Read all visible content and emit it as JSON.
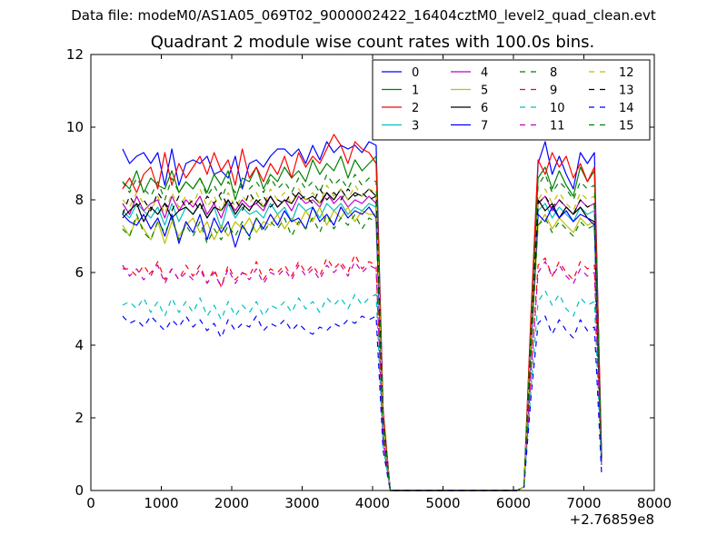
{
  "header": {
    "data_file": "Data file: modeM0/AS1A05_069T02_9000002422_16404cztM0_level2_quad_clean.evt"
  },
  "chart_data": {
    "type": "line",
    "title": "Quadrant 2 module wise count rates with 100.0s bins.",
    "xlabel": "",
    "ylabel": "",
    "xlim": [
      0,
      8000
    ],
    "ylim": [
      0,
      12
    ],
    "x_offset_label": "+2.76859e8",
    "x_ticks": [
      0,
      1000,
      2000,
      3000,
      4000,
      5000,
      6000,
      7000,
      8000
    ],
    "y_ticks": [
      0,
      2,
      4,
      6,
      8,
      10,
      12
    ],
    "grid": false,
    "legend_position": "top-right",
    "legend_columns": 4,
    "x": [
      450,
      550,
      650,
      750,
      850,
      950,
      1050,
      1150,
      1250,
      1350,
      1450,
      1550,
      1650,
      1750,
      1850,
      1950,
      2050,
      2150,
      2250,
      2350,
      2450,
      2550,
      2650,
      2750,
      2850,
      2950,
      3050,
      3150,
      3250,
      3350,
      3450,
      3550,
      3650,
      3750,
      3850,
      3950,
      4050,
      4150,
      4250,
      4350,
      4450,
      4550,
      4650,
      4750,
      4850,
      4950,
      5050,
      5150,
      5250,
      5350,
      5450,
      5550,
      5650,
      5750,
      5850,
      5950,
      6050,
      6150,
      6250,
      6350,
      6450,
      6550,
      6650,
      6750,
      6850,
      6950,
      7050,
      7150,
      7250
    ],
    "series": [
      {
        "name": "0",
        "color": "#0000ff",
        "dash": "solid",
        "values": [
          9.4,
          9.0,
          9.2,
          9.3,
          9.0,
          9.3,
          8.4,
          9.4,
          8.4,
          9.0,
          9.1,
          9.0,
          9.2,
          8.7,
          8.8,
          8.6,
          9.2,
          8.3,
          9.0,
          9.1,
          8.9,
          9.2,
          9.4,
          9.4,
          9.2,
          9.4,
          9.0,
          9.5,
          9.1,
          9.6,
          9.3,
          9.5,
          9.4,
          9.5,
          9.3,
          9.6,
          9.5,
          2.2,
          0,
          0,
          0,
          0,
          0,
          0,
          0,
          0,
          0,
          0,
          0,
          0,
          0,
          0,
          0,
          0,
          0,
          0,
          0,
          0.1,
          4.8,
          9.0,
          9.6,
          8.7,
          9.2,
          8.7,
          8.3,
          9.3,
          9.0,
          9.3,
          0.7
        ]
      },
      {
        "name": "1",
        "color": "#008000",
        "dash": "solid",
        "values": [
          8.5,
          8.3,
          8.8,
          8.2,
          8.6,
          8.4,
          8.3,
          8.8,
          8.2,
          8.5,
          8.3,
          8.6,
          8.2,
          8.7,
          8.4,
          8.8,
          8.0,
          8.6,
          8.5,
          8.9,
          8.3,
          8.7,
          8.5,
          8.9,
          8.6,
          8.8,
          8.5,
          9.1,
          8.7,
          9.0,
          8.8,
          9.2,
          8.6,
          9.1,
          8.8,
          9.0,
          9.2,
          2.0,
          0,
          0,
          0,
          0,
          0,
          0,
          0,
          0,
          0,
          0,
          0,
          0,
          0,
          0,
          0,
          0,
          0,
          0,
          0,
          0.1,
          4.5,
          8.6,
          8.9,
          8.3,
          8.8,
          8.4,
          8.1,
          8.9,
          8.5,
          8.8,
          1.0
        ]
      },
      {
        "name": "2",
        "color": "#ff0000",
        "dash": "solid",
        "values": [
          8.3,
          8.6,
          8.2,
          8.7,
          8.9,
          8.3,
          9.3,
          8.4,
          9.0,
          8.6,
          8.9,
          9.2,
          8.7,
          9.3,
          8.8,
          9.1,
          8.4,
          9.4,
          8.6,
          8.9,
          8.5,
          9.0,
          8.7,
          9.2,
          8.6,
          9.3,
          8.9,
          9.2,
          9.0,
          9.4,
          9.8,
          9.5,
          9.0,
          9.6,
          9.4,
          9.3,
          9.0,
          2.2,
          0,
          0,
          0,
          0,
          0,
          0,
          0,
          0,
          0,
          0,
          0,
          0,
          0,
          0,
          0,
          0,
          0,
          0,
          0,
          0.1,
          4.9,
          9.1,
          8.7,
          9.3,
          8.9,
          9.2,
          8.6,
          9.0,
          8.5,
          8.9,
          1.1
        ]
      },
      {
        "name": "3",
        "color": "#00bfbf",
        "dash": "solid",
        "values": [
          7.7,
          7.5,
          7.9,
          7.7,
          7.5,
          7.8,
          7.3,
          7.9,
          7.4,
          7.8,
          7.6,
          7.9,
          7.5,
          7.8,
          7.2,
          7.9,
          7.5,
          7.8,
          7.6,
          7.7,
          7.5,
          7.9,
          7.6,
          7.8,
          7.4,
          7.9,
          7.7,
          7.8,
          7.5,
          7.9,
          7.7,
          7.9,
          7.6,
          7.8,
          7.7,
          7.9,
          7.8,
          1.8,
          0,
          0,
          0,
          0,
          0,
          0,
          0,
          0,
          0,
          0,
          0,
          0,
          0,
          0,
          0,
          0,
          0,
          0,
          0,
          0.1,
          4.1,
          7.7,
          7.9,
          7.5,
          7.8,
          7.6,
          7.4,
          7.8,
          7.6,
          7.7,
          0.9
        ]
      },
      {
        "name": "4",
        "color": "#bf00bf",
        "dash": "solid",
        "values": [
          7.9,
          7.6,
          8.1,
          7.7,
          7.9,
          8.0,
          7.5,
          8.1,
          7.7,
          8.0,
          7.8,
          8.1,
          7.6,
          7.9,
          7.5,
          8.0,
          7.7,
          8.0,
          7.8,
          7.9,
          7.7,
          8.1,
          7.8,
          8.0,
          7.7,
          8.1,
          7.9,
          8.0,
          7.8,
          8.2,
          7.9,
          8.1,
          7.8,
          8.0,
          7.9,
          8.1,
          7.9,
          1.9,
          0,
          0,
          0,
          0,
          0,
          0,
          0,
          0,
          0,
          0,
          0,
          0,
          0,
          0,
          0,
          0,
          0,
          0,
          0,
          0.1,
          4.2,
          7.9,
          8.1,
          7.7,
          8.0,
          7.8,
          7.6,
          8.0,
          7.8,
          7.9,
          0.9
        ]
      },
      {
        "name": "5",
        "color": "#bfbf00",
        "dash": "solid",
        "values": [
          7.3,
          7.0,
          7.5,
          7.2,
          6.9,
          7.4,
          6.8,
          7.4,
          7.0,
          7.3,
          7.5,
          7.1,
          7.4,
          6.9,
          7.3,
          7.0,
          7.4,
          7.2,
          7.5,
          7.1,
          7.4,
          7.3,
          7.6,
          7.2,
          7.5,
          7.3,
          7.7,
          7.4,
          7.8,
          7.3,
          7.7,
          7.5,
          7.8,
          7.4,
          7.7,
          7.6,
          7.6,
          1.7,
          0,
          0,
          0,
          0,
          0,
          0,
          0,
          0,
          0,
          0,
          0,
          0,
          0,
          0,
          0,
          0,
          0,
          0,
          0,
          0.1,
          3.9,
          7.3,
          7.6,
          7.2,
          7.5,
          7.3,
          7.1,
          7.5,
          7.3,
          7.4,
          0.8
        ]
      },
      {
        "name": "6",
        "color": "#000000",
        "dash": "solid",
        "values": [
          7.5,
          7.7,
          7.9,
          7.4,
          7.8,
          7.6,
          7.9,
          7.5,
          7.7,
          7.8,
          7.6,
          7.9,
          7.5,
          7.8,
          7.7,
          8.0,
          7.6,
          7.9,
          7.7,
          8.0,
          7.8,
          8.1,
          7.8,
          8.0,
          7.9,
          8.2,
          8.0,
          8.1,
          7.9,
          8.2,
          8.0,
          8.3,
          8.0,
          8.2,
          8.1,
          8.3,
          8.1,
          1.9,
          0,
          0,
          0,
          0,
          0,
          0,
          0,
          0,
          0,
          0,
          0,
          0,
          0,
          0,
          0,
          0,
          0,
          0,
          0,
          0.1,
          4.3,
          8.0,
          7.7,
          7.9,
          7.5,
          7.8,
          7.6,
          7.8,
          7.5,
          7.4,
          0.9
        ]
      },
      {
        "name": "7",
        "color": "#0000ff",
        "dash": "solid",
        "values": [
          7.6,
          7.4,
          7.3,
          7.6,
          7.2,
          7.5,
          7.0,
          7.6,
          6.8,
          7.4,
          7.1,
          7.6,
          6.9,
          7.5,
          7.1,
          7.4,
          6.7,
          7.3,
          7.0,
          7.5,
          7.2,
          7.6,
          7.3,
          7.7,
          7.4,
          7.5,
          7.2,
          7.8,
          7.4,
          7.6,
          7.3,
          7.8,
          7.5,
          7.7,
          7.6,
          7.8,
          7.5,
          1.8,
          0,
          0,
          0,
          0,
          0,
          0,
          0,
          0,
          0,
          0,
          0,
          0,
          0,
          0,
          0,
          0,
          0,
          0,
          0,
          0.1,
          4.0,
          7.6,
          7.4,
          7.8,
          7.5,
          7.7,
          7.4,
          7.6,
          7.5,
          7.3,
          0.8
        ]
      },
      {
        "name": "8",
        "color": "#008000",
        "dash": "dashed",
        "values": [
          7.2,
          7.0,
          7.6,
          7.1,
          6.9,
          7.4,
          7.1,
          7.5,
          6.9,
          7.3,
          7.0,
          7.4,
          6.8,
          7.2,
          6.9,
          7.3,
          7.0,
          7.4,
          6.9,
          7.5,
          7.1,
          7.4,
          7.2,
          7.5,
          7.0,
          7.4,
          7.2,
          7.5,
          7.1,
          7.6,
          7.2,
          7.5,
          7.3,
          7.6,
          7.2,
          7.5,
          7.4,
          1.7,
          0,
          0,
          0,
          0,
          0,
          0,
          0,
          0,
          0,
          0,
          0,
          0,
          0,
          0,
          0,
          0,
          0,
          0,
          0,
          0.1,
          3.9,
          7.3,
          7.5,
          7.1,
          7.4,
          7.2,
          7.0,
          7.4,
          7.2,
          7.3,
          0.8
        ]
      },
      {
        "name": "9",
        "color": "#ff0000",
        "dash": "dashed",
        "values": [
          6.1,
          6.1,
          5.9,
          6.2,
          5.9,
          6.3,
          5.8,
          6.1,
          5.8,
          6.2,
          5.9,
          6.2,
          5.7,
          6.1,
          5.6,
          6.2,
          5.8,
          6.0,
          5.9,
          6.3,
          5.8,
          6.1,
          6.0,
          6.2,
          5.9,
          6.3,
          6.0,
          6.2,
          5.9,
          6.4,
          6.1,
          6.3,
          6.0,
          6.5,
          6.1,
          6.3,
          6.2,
          1.4,
          0,
          0,
          0,
          0,
          0,
          0,
          0,
          0,
          0,
          0,
          0,
          0,
          0,
          0,
          0,
          0,
          0,
          0,
          0,
          0.1,
          3.3,
          6.2,
          6.4,
          5.9,
          6.3,
          6.0,
          5.8,
          6.3,
          6.1,
          6.2,
          0.7
        ]
      },
      {
        "name": "10",
        "color": "#00bfbf",
        "dash": "dashed",
        "values": [
          5.1,
          5.2,
          5.0,
          5.3,
          4.9,
          5.2,
          4.8,
          5.3,
          4.9,
          5.2,
          4.9,
          5.3,
          4.8,
          5.1,
          4.7,
          5.2,
          4.8,
          5.1,
          4.9,
          5.2,
          4.8,
          5.1,
          5.0,
          5.2,
          4.9,
          5.3,
          5.0,
          5.2,
          4.9,
          5.3,
          5.1,
          5.3,
          5.0,
          5.4,
          5.1,
          5.3,
          5.4,
          1.2,
          0,
          0,
          0,
          0,
          0,
          0,
          0,
          0,
          0,
          0,
          0,
          0,
          0,
          0,
          0,
          0,
          0,
          0,
          0,
          0.1,
          2.8,
          5.2,
          5.5,
          5.1,
          5.4,
          5.0,
          4.8,
          5.3,
          5.1,
          5.2,
          0.6
        ]
      },
      {
        "name": "11",
        "color": "#bf00bf",
        "dash": "dashed",
        "values": [
          6.2,
          5.9,
          6.1,
          5.8,
          6.0,
          6.2,
          5.7,
          6.1,
          5.8,
          6.0,
          5.8,
          6.1,
          5.7,
          6.0,
          5.6,
          6.1,
          5.7,
          6.0,
          5.8,
          6.1,
          5.7,
          6.0,
          5.9,
          6.1,
          5.8,
          6.2,
          5.9,
          6.1,
          5.8,
          6.2,
          6.0,
          6.2,
          5.9,
          6.3,
          6.0,
          6.2,
          6.1,
          1.4,
          0,
          0,
          0,
          0,
          0,
          0,
          0,
          0,
          0,
          0,
          0,
          0,
          0,
          0,
          0,
          0,
          0,
          0,
          0,
          0.1,
          3.2,
          6.0,
          6.3,
          5.9,
          6.2,
          5.9,
          5.7,
          6.1,
          5.9,
          6.0,
          0.7
        ]
      },
      {
        "name": "12",
        "color": "#bfbf00",
        "dash": "dashed",
        "values": [
          8.0,
          7.8,
          8.2,
          7.9,
          7.7,
          8.1,
          7.6,
          8.2,
          7.8,
          8.1,
          7.9,
          8.3,
          7.8,
          8.1,
          7.7,
          8.2,
          7.8,
          8.1,
          7.9,
          8.2,
          7.8,
          8.3,
          8.0,
          8.2,
          7.9,
          8.3,
          8.0,
          8.2,
          7.9,
          8.4,
          8.1,
          8.3,
          8.0,
          8.4,
          8.1,
          8.3,
          8.2,
          1.9,
          0,
          0,
          0,
          0,
          0,
          0,
          0,
          0,
          0,
          0,
          0,
          0,
          0,
          0,
          0,
          0,
          0,
          0,
          0,
          0.1,
          4.3,
          8.0,
          8.3,
          7.9,
          8.2,
          7.9,
          7.7,
          8.2,
          8.0,
          8.1,
          0.9
        ]
      },
      {
        "name": "13",
        "color": "#000000",
        "dash": "dashed",
        "values": [
          7.6,
          8.1,
          7.8,
          8.0,
          7.7,
          8.2,
          7.9,
          7.7,
          8.1,
          7.8,
          8.0,
          7.7,
          8.1,
          7.9,
          8.2,
          7.8,
          8.0,
          7.7,
          8.2,
          7.9,
          8.1,
          7.8,
          8.0,
          7.9,
          8.2,
          8.0,
          8.1,
          7.9,
          8.3,
          8.0,
          8.2,
          8.0,
          8.3,
          8.1,
          8.2,
          8.0,
          8.1,
          1.9,
          0,
          0,
          0,
          0,
          0,
          0,
          0,
          0,
          0,
          0,
          0,
          0,
          0,
          0,
          0,
          0,
          0,
          0,
          0,
          0.1,
          4.3,
          7.9,
          8.1,
          7.8,
          8.0,
          7.8,
          7.6,
          8.0,
          7.8,
          7.9,
          0.9
        ]
      },
      {
        "name": "14",
        "color": "#0000ff",
        "dash": "dashed",
        "values": [
          4.8,
          4.6,
          4.7,
          4.5,
          4.8,
          4.6,
          4.4,
          4.7,
          4.5,
          4.8,
          4.5,
          4.7,
          4.4,
          4.6,
          4.2,
          4.7,
          4.4,
          4.6,
          4.5,
          4.8,
          4.4,
          4.6,
          4.5,
          4.7,
          4.4,
          4.6,
          4.4,
          4.3,
          4.5,
          4.4,
          4.6,
          4.5,
          4.7,
          4.6,
          4.8,
          4.7,
          4.8,
          1.1,
          0,
          0,
          0,
          0,
          0,
          0,
          0,
          0,
          0,
          0,
          0,
          0,
          0,
          0,
          0,
          0,
          0,
          0,
          0,
          0.1,
          2.6,
          4.6,
          4.8,
          4.3,
          4.7,
          4.4,
          4.2,
          4.7,
          4.4,
          4.5,
          0.5
        ]
      },
      {
        "name": "15",
        "color": "#008000",
        "dash": "dashed",
        "values": [
          8.5,
          8.2,
          8.6,
          8.3,
          8.1,
          8.5,
          8.0,
          8.6,
          8.2,
          8.5,
          8.3,
          8.6,
          8.1,
          8.4,
          8.0,
          8.5,
          8.2,
          8.4,
          8.3,
          8.5,
          8.2,
          8.6,
          8.3,
          8.5,
          8.2,
          8.6,
          8.3,
          8.5,
          8.2,
          8.7,
          8.4,
          8.6,
          8.3,
          8.7,
          8.4,
          8.6,
          8.5,
          2.0,
          0,
          0,
          0,
          0,
          0,
          0,
          0,
          0,
          0,
          0,
          0,
          0,
          0,
          0,
          0,
          0,
          0,
          0,
          0,
          0.1,
          4.5,
          8.4,
          8.7,
          8.2,
          8.5,
          8.3,
          8.0,
          8.5,
          8.3,
          8.4,
          1.0
        ]
      }
    ]
  }
}
